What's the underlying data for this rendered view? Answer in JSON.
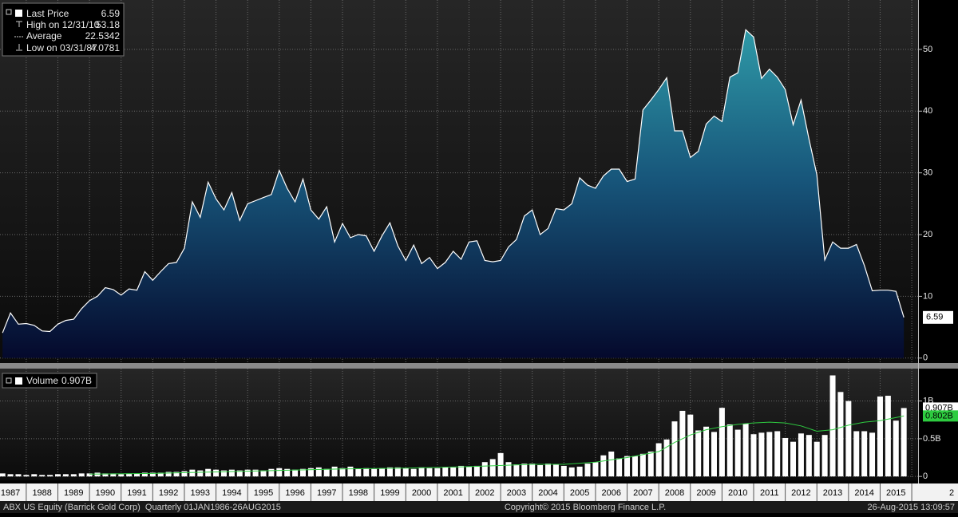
{
  "chart_data": [
    {
      "type": "area",
      "legend": [
        {
          "label": "Last Price",
          "value": "6.59"
        },
        {
          "label": "High on 12/31/10",
          "value": "53.18"
        },
        {
          "label": "Average",
          "value": "22.5342"
        },
        {
          "label": "Low on 03/31/87",
          "value": "4.0781"
        }
      ],
      "x": [
        1987.25,
        1987.5,
        1987.75,
        1988,
        1988.25,
        1988.5,
        1988.75,
        1989,
        1989.25,
        1989.5,
        1989.75,
        1990,
        1990.25,
        1990.5,
        1990.75,
        1991,
        1991.25,
        1991.5,
        1991.75,
        1992,
        1992.25,
        1992.5,
        1992.75,
        1993,
        1993.25,
        1993.5,
        1993.75,
        1994,
        1994.25,
        1994.5,
        1994.75,
        1995,
        1995.25,
        1995.5,
        1995.75,
        1996,
        1996.25,
        1996.5,
        1996.75,
        1997,
        1997.25,
        1997.5,
        1997.75,
        1998,
        1998.25,
        1998.5,
        1998.75,
        1999,
        1999.25,
        1999.5,
        1999.75,
        2000,
        2000.25,
        2000.5,
        2000.75,
        2001,
        2001.25,
        2001.5,
        2001.75,
        2002,
        2002.25,
        2002.5,
        2002.75,
        2003,
        2003.25,
        2003.5,
        2003.75,
        2004,
        2004.25,
        2004.5,
        2004.75,
        2005,
        2005.25,
        2005.5,
        2005.75,
        2006,
        2006.25,
        2006.5,
        2006.75,
        2007,
        2007.25,
        2007.5,
        2007.75,
        2008,
        2008.25,
        2008.5,
        2008.75,
        2009,
        2009.25,
        2009.5,
        2009.75,
        2010,
        2010.25,
        2010.5,
        2010.75,
        2011,
        2011.25,
        2011.5,
        2011.75,
        2012,
        2012.25,
        2012.5,
        2012.75,
        2013,
        2013.25,
        2013.5,
        2013.75,
        2014,
        2014.25,
        2014.5,
        2014.75,
        2015,
        2015.25,
        2015.5,
        2015.75
      ],
      "series": [
        {
          "name": "Last Price",
          "color": "#ffffff",
          "values": [
            4.08,
            7.3,
            5.5,
            5.6,
            5.3,
            4.4,
            4.3,
            5.5,
            6.1,
            6.3,
            8.0,
            9.3,
            10.0,
            11.4,
            11.1,
            10.2,
            11.2,
            11.0,
            14.0,
            12.6,
            14.0,
            15.3,
            15.5,
            17.8,
            25.3,
            22.8,
            28.5,
            25.8,
            24.0,
            26.8,
            22.3,
            25.0,
            25.5,
            26.0,
            26.5,
            30.4,
            27.5,
            25.3,
            29.0,
            24.0,
            22.5,
            24.5,
            18.8,
            21.8,
            19.5,
            20.0,
            19.8,
            17.3,
            19.8,
            21.9,
            18.2,
            15.8,
            18.3,
            15.3,
            16.3,
            14.5,
            15.5,
            17.3,
            16.0,
            18.8,
            19.0,
            15.8,
            15.6,
            15.8,
            18.0,
            19.2,
            23.0,
            24.0,
            20.0,
            21.0,
            24.2,
            24.0,
            25.0,
            29.2,
            28.0,
            27.5,
            29.5,
            30.6,
            30.6,
            28.6,
            29.0,
            40.2,
            41.8,
            43.5,
            45.4,
            36.8,
            36.8,
            32.5,
            33.5,
            37.9,
            39.2,
            38.3,
            45.5,
            46.2,
            53.18,
            52.0,
            45.3,
            46.8,
            45.5,
            43.5,
            37.8,
            41.8,
            35.5,
            29.7,
            15.9,
            18.8,
            17.8,
            17.8,
            18.4,
            15.0,
            10.9,
            11.0,
            11.0,
            10.8,
            6.59
          ]
        }
      ],
      "xlim": [
        1987.17,
        2016.2
      ],
      "xticks": [
        1987,
        1988,
        1989,
        1990,
        1991,
        1992,
        1993,
        1994,
        1995,
        1996,
        1997,
        1998,
        1999,
        2000,
        2001,
        2002,
        2003,
        2004,
        2005,
        2006,
        2007,
        2008,
        2009,
        2010,
        2011,
        2012,
        2013,
        2014,
        2015,
        {
          "value": 2016,
          "label": "2"
        }
      ],
      "ylim": [
        -0.8,
        58
      ],
      "yticks": [
        0,
        10,
        20,
        30,
        40,
        50
      ],
      "grid": true
    },
    {
      "type": "bar",
      "legend": [
        {
          "label": "Volume",
          "value": "0.907B"
        }
      ],
      "x": [
        1987.25,
        1987.5,
        1987.75,
        1988,
        1988.25,
        1988.5,
        1988.75,
        1989,
        1989.25,
        1989.5,
        1989.75,
        1990,
        1990.25,
        1990.5,
        1990.75,
        1991,
        1991.25,
        1991.5,
        1991.75,
        1992,
        1992.25,
        1992.5,
        1992.75,
        1993,
        1993.25,
        1993.5,
        1993.75,
        1994,
        1994.25,
        1994.5,
        1994.75,
        1995,
        1995.25,
        1995.5,
        1995.75,
        1996,
        1996.25,
        1996.5,
        1996.75,
        1997,
        1997.25,
        1997.5,
        1997.75,
        1998,
        1998.25,
        1998.5,
        1998.75,
        1999,
        1999.25,
        1999.5,
        1999.75,
        2000,
        2000.25,
        2000.5,
        2000.75,
        2001,
        2001.25,
        2001.5,
        2001.75,
        2002,
        2002.25,
        2002.5,
        2002.75,
        2003,
        2003.25,
        2003.5,
        2003.75,
        2004,
        2004.25,
        2004.5,
        2004.75,
        2005,
        2005.25,
        2005.5,
        2005.75,
        2006,
        2006.25,
        2006.5,
        2006.75,
        2007,
        2007.25,
        2007.5,
        2007.75,
        2008,
        2008.25,
        2008.5,
        2008.75,
        2009,
        2009.25,
        2009.5,
        2009.75,
        2010,
        2010.25,
        2010.5,
        2010.75,
        2011,
        2011.25,
        2011.5,
        2011.75,
        2012,
        2012.25,
        2012.5,
        2012.75,
        2013,
        2013.25,
        2013.5,
        2013.75,
        2014,
        2014.25,
        2014.5,
        2014.75,
        2015,
        2015.25,
        2015.5,
        2015.75
      ],
      "series": [
        {
          "name": "Volume",
          "color": "#ffffff",
          "label": "0.907B",
          "values": [
            0.04,
            0.03,
            0.03,
            0.02,
            0.03,
            0.02,
            0.02,
            0.03,
            0.03,
            0.03,
            0.04,
            0.04,
            0.05,
            0.04,
            0.04,
            0.03,
            0.04,
            0.04,
            0.05,
            0.05,
            0.05,
            0.06,
            0.06,
            0.07,
            0.09,
            0.08,
            0.1,
            0.09,
            0.08,
            0.09,
            0.08,
            0.09,
            0.09,
            0.08,
            0.1,
            0.11,
            0.1,
            0.09,
            0.1,
            0.11,
            0.12,
            0.1,
            0.13,
            0.11,
            0.13,
            0.1,
            0.11,
            0.1,
            0.11,
            0.12,
            0.12,
            0.11,
            0.1,
            0.12,
            0.11,
            0.11,
            0.12,
            0.12,
            0.14,
            0.13,
            0.14,
            0.19,
            0.23,
            0.31,
            0.19,
            0.16,
            0.17,
            0.17,
            0.15,
            0.17,
            0.16,
            0.14,
            0.12,
            0.13,
            0.17,
            0.19,
            0.28,
            0.33,
            0.24,
            0.27,
            0.27,
            0.3,
            0.33,
            0.44,
            0.49,
            0.73,
            0.87,
            0.82,
            0.61,
            0.66,
            0.59,
            0.91,
            0.69,
            0.62,
            0.7,
            0.56,
            0.58,
            0.59,
            0.6,
            0.51,
            0.46,
            0.57,
            0.55,
            0.46,
            0.55,
            1.34,
            1.12,
            1.0,
            0.6,
            0.6,
            0.58,
            1.06,
            1.07,
            0.74,
            0.907
          ]
        },
        {
          "type": "line",
          "color": "#2ecc40",
          "label": "0.802B",
          "x": [
            1990,
            1992,
            1994,
            1996,
            1998,
            2000,
            2002,
            2004,
            2005,
            2006,
            2007,
            2008,
            2008.5,
            2009,
            2009.5,
            2010,
            2010.5,
            2011,
            2011.5,
            2012,
            2012.5,
            2013,
            2013.5,
            2014,
            2014.5,
            2015,
            2015.75
          ],
          "values": [
            0.03,
            0.04,
            0.06,
            0.08,
            0.1,
            0.11,
            0.13,
            0.16,
            0.16,
            0.19,
            0.25,
            0.33,
            0.45,
            0.55,
            0.62,
            0.66,
            0.69,
            0.71,
            0.72,
            0.71,
            0.67,
            0.6,
            0.62,
            0.68,
            0.72,
            0.74,
            0.802
          ]
        }
      ],
      "xlim": [
        1987.17,
        2016.2
      ],
      "ylim": [
        -0.03,
        1.43
      ],
      "yticks": [
        0,
        {
          "value": 0.5,
          "label": "0.5B"
        },
        {
          "value": 1,
          "label": "1B"
        }
      ],
      "grid": true
    }
  ],
  "footer": {
    "left": "ABX US Equity (Barrick Gold Corp)  Quarterly 01JAN1986-26AUG2015",
    "center": "Copyright© 2015 Bloomberg Finance L.P.",
    "right": "26-Aug-2015 13:09:57"
  }
}
